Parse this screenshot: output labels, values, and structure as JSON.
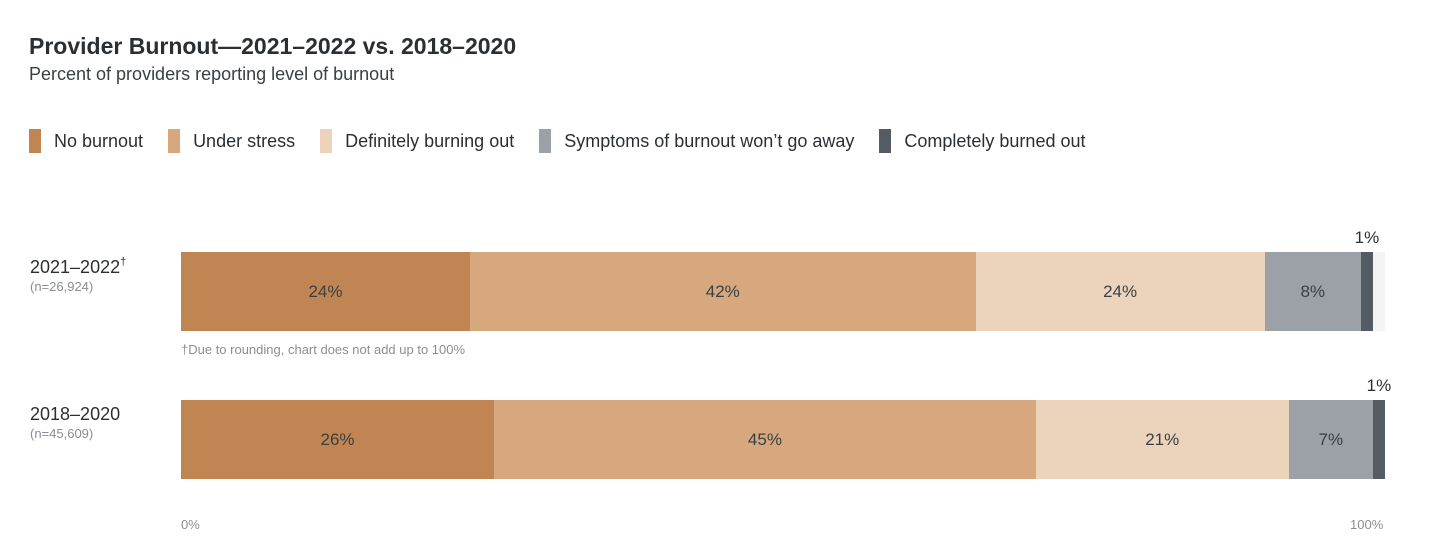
{
  "chart_data": {
    "type": "bar",
    "orientation": "horizontal",
    "stacked": true,
    "title": "Provider Burnout—2021–2022 vs. 2018–2020",
    "subtitle": "Percent of providers reporting level of burnout",
    "legend_position": "top-left",
    "xlim": [
      0,
      100
    ],
    "x_ticks": [
      "0%",
      "100%"
    ],
    "categories": [
      {
        "label": "2021–2022",
        "marker": "†",
        "n": "(n=26,924)"
      },
      {
        "label": "2018–2020",
        "marker": "",
        "n": "(n=45,609)"
      }
    ],
    "series": [
      {
        "name": "No burnout",
        "color": "#c08552",
        "values": [
          24,
          26
        ],
        "labels": [
          "24%",
          "26%"
        ]
      },
      {
        "name": "Under stress",
        "color": "#d7a77d",
        "values": [
          42,
          45
        ],
        "labels": [
          "42%",
          "45%"
        ]
      },
      {
        "name": "Definitely burning out",
        "color": "#ebd3bc",
        "values": [
          24,
          21
        ],
        "labels": [
          "24%",
          "21%"
        ]
      },
      {
        "name": "Symptoms of burnout won’t go away",
        "color": "#9ca1a7",
        "values": [
          8,
          7
        ],
        "labels": [
          "8%",
          "7%"
        ]
      },
      {
        "name": "Completely burned out",
        "color": "#555b62",
        "values": [
          1,
          1
        ],
        "labels": [
          "1%",
          "1%"
        ]
      }
    ],
    "footnote": "†Due to rounding, chart does not add up to 100%"
  }
}
